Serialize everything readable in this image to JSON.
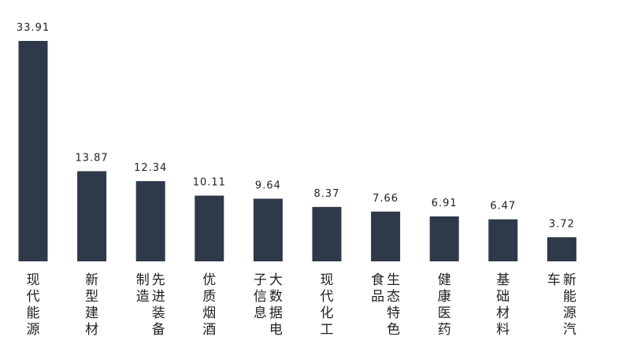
{
  "chart_data": {
    "type": "bar",
    "title": "",
    "xlabel": "",
    "ylabel": "",
    "grid": false,
    "legend": "none",
    "ylim": [
      0,
      35
    ],
    "bar_color": "#2e3a4a",
    "categories": [
      "现代能源",
      "新型建材",
      "先进装备制造",
      "优质烟酒",
      "大数据电子信息",
      "现代化工",
      "生态特色食品",
      "健康医药",
      "基础材料",
      "新能源汽车"
    ],
    "category_columns": [
      [
        "现代能源"
      ],
      [
        "新型建材"
      ],
      [
        "先进装备",
        "制造"
      ],
      [
        "优质烟酒"
      ],
      [
        "大数据电",
        "子信息"
      ],
      [
        "现代化工"
      ],
      [
        "生态特色",
        "食品"
      ],
      [
        "健康医药"
      ],
      [
        "基础材料"
      ],
      [
        "新能源汽",
        "车"
      ]
    ],
    "values": [
      33.91,
      13.87,
      12.34,
      10.11,
      9.64,
      8.37,
      7.66,
      6.91,
      6.47,
      3.72
    ],
    "value_labels": [
      "33.91",
      "13.87",
      "12.34",
      "10.11",
      "9.64",
      "8.37",
      "7.66",
      "6.91",
      "6.47",
      "3.72"
    ]
  }
}
